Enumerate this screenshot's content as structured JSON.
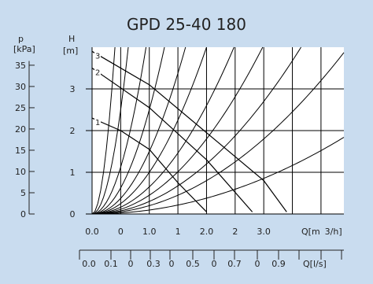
{
  "title": "GPD 25-40 180",
  "left_axis_pressure": {
    "label": "p",
    "unit": "[kPa]",
    "ticks": [
      "35",
      "30",
      "25",
      "20",
      "15",
      "10",
      "5",
      "0"
    ]
  },
  "left_axis_head": {
    "label": "H",
    "unit": "[m]",
    "ticks": [
      "3",
      "2",
      "1",
      "0"
    ]
  },
  "flow_axis_m3h": {
    "label_parts": [
      "Q[m",
      "3/h]"
    ],
    "ticks": [
      "0.0",
      "0",
      "1.0",
      "1",
      "2.0",
      "2",
      "3.0"
    ]
  },
  "flow_axis_ls": {
    "label": "Q[l/s]",
    "ticks": [
      "0.0",
      "0.1",
      "0",
      "0.3",
      "0",
      "0.5",
      "0",
      "0.7",
      "0",
      "0.9"
    ]
  },
  "colors": {
    "background": "#c9dcef",
    "plot_background": "#ffffff",
    "curve": "#000000",
    "grid": "#000000"
  },
  "chart_data": {
    "type": "line",
    "title": "GPD 25-40 180",
    "xlabel": "Q[m3/h]",
    "ylabel": "H [m]",
    "secondary_ylabel": "p [kPa]",
    "secondary_xlabel": "Q[l/s]",
    "xlim": [
      0,
      4.4
    ],
    "ylim": [
      0,
      4.0
    ],
    "grid": true,
    "pump_curves": [
      {
        "name": "3",
        "points": [
          [
            0.0,
            3.9
          ],
          [
            1.0,
            3.1
          ],
          [
            2.0,
            1.95
          ],
          [
            3.0,
            0.8
          ],
          [
            3.4,
            0.05
          ]
        ]
      },
      {
        "name": "2",
        "points": [
          [
            0.0,
            3.5
          ],
          [
            1.0,
            2.55
          ],
          [
            2.0,
            1.3
          ],
          [
            2.8,
            0.05
          ]
        ]
      },
      {
        "name": "1",
        "points": [
          [
            0.0,
            2.3
          ],
          [
            0.5,
            2.0
          ],
          [
            1.0,
            1.55
          ],
          [
            1.5,
            0.75
          ],
          [
            2.0,
            0.05
          ]
        ]
      }
    ],
    "system_curves": [
      {
        "k": 25.0
      },
      {
        "k": 10.0
      },
      {
        "k": 4.5
      },
      {
        "k": 2.5
      },
      {
        "k": 1.5
      },
      {
        "k": 1.0
      },
      {
        "k": 0.65
      },
      {
        "k": 0.45
      },
      {
        "k": 0.3
      },
      {
        "k": 0.2
      },
      {
        "k": 0.095
      }
    ]
  }
}
